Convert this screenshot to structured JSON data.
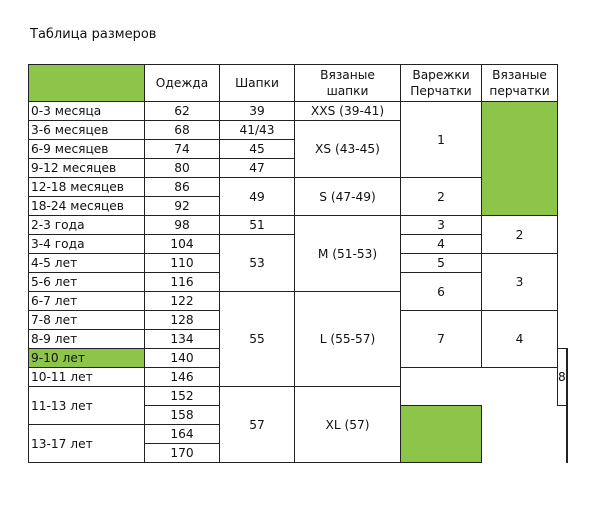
{
  "title": "Таблица размеров",
  "colors": {
    "highlight": "#8dc54b"
  },
  "headers": {
    "clothes": "Одежда",
    "hats": "Шапки",
    "knit_hats_1": "Вязаные",
    "knit_hats_2": "шапки",
    "mittens_1": "Варежки",
    "mittens_2": "Перчатки",
    "knit_gloves_1": "Вязаные",
    "knit_gloves_2": "перчатки"
  },
  "ages": [
    "0-3 месяца",
    "3-6 месяцев",
    "6-9 месяцев",
    "9-12 месяцев",
    "12-18 месяцев",
    "18-24 месяцев",
    "2-3 года",
    "3-4 года",
    "4-5 лет",
    "5-6 лет",
    "6-7 лет",
    "7-8 лет",
    "8-9 лет",
    "9-10 лет",
    "10-11 лет",
    "11-13 лет",
    "13-17 лет"
  ],
  "clothes": [
    "62",
    "68",
    "74",
    "80",
    "86",
    "92",
    "98",
    "104",
    "110",
    "116",
    "122",
    "128",
    "134",
    "140",
    "146",
    "152",
    "158",
    "164",
    "170"
  ],
  "hats": [
    "39",
    "41/43",
    "45",
    "47",
    "49",
    "51",
    "53",
    "55",
    "57"
  ],
  "knit_hats": [
    "XXS (39-41)",
    "XS (43-45)",
    "S (47-49)",
    "M (51-53)",
    "L (55-57)",
    "XL (57)"
  ],
  "mittens": [
    "1",
    "2",
    "3",
    "4",
    "5",
    "6",
    "7",
    "8"
  ],
  "knit_gloves": [
    "2",
    "3",
    "4"
  ]
}
